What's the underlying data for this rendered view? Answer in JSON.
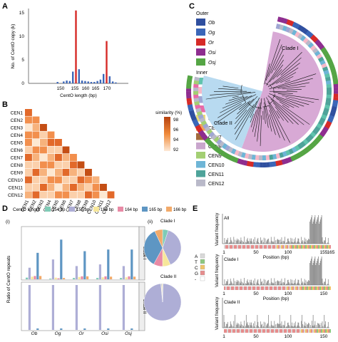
{
  "panels": {
    "A": {
      "label": "A",
      "ylabel": "No. of CentO copy (k)",
      "xlabel": "CentO length (bp)",
      "xticks": [
        "150",
        "155",
        "160",
        "165",
        "170"
      ],
      "yticks": [
        "0",
        "5",
        "10",
        "15"
      ]
    },
    "B": {
      "label": "B",
      "legend_title": "similarity (%)",
      "legend_ticks": [
        "98",
        "96",
        "94",
        "92"
      ],
      "rows": [
        "CEN1",
        "CEN2",
        "CEN3",
        "CEN4",
        "CEN5",
        "CEN6",
        "CEN7",
        "CEN8",
        "CEN9",
        "CEN10",
        "CEN11",
        "CEN12"
      ]
    },
    "C": {
      "label": "C",
      "outer_title": "Outer",
      "outer": [
        {
          "name": "Ob",
          "color": "#2f4f9f"
        },
        {
          "name": "Og",
          "color": "#3b66b8"
        },
        {
          "name": "Or",
          "color": "#d62a27"
        },
        {
          "name": "Osi",
          "color": "#8e2d8f"
        },
        {
          "name": "Osj",
          "color": "#55a544"
        }
      ],
      "inner_title": "Inner",
      "inner": [
        {
          "name": "CEN1",
          "color": "#5fc3ad"
        },
        {
          "name": "CEN2",
          "color": "#f6b8c8"
        },
        {
          "name": "CEN3",
          "color": "#9fa6d3"
        },
        {
          "name": "CEN4",
          "color": "#e86aa8"
        },
        {
          "name": "CEN5",
          "color": "#e9db79"
        },
        {
          "name": "CEN6",
          "color": "#f3a35a"
        },
        {
          "name": "CEN7",
          "color": "#a36a3b"
        },
        {
          "name": "CEN8",
          "color": "#c9a6cd"
        },
        {
          "name": "CEN9",
          "color": "#a3cf73"
        },
        {
          "name": "CEN10",
          "color": "#6eb5d6"
        },
        {
          "name": "CEN11",
          "color": "#4ea39a"
        },
        {
          "name": "CEN12",
          "color": "#b9b9c9"
        }
      ],
      "clade1": "Clade I",
      "clade2": "Clade II"
    },
    "D": {
      "label": "D",
      "legend_title": "CentO length",
      "legend": [
        {
          "name": "154 bp",
          "color": "#7fcbb6"
        },
        {
          "name": "155 bp",
          "color": "#aeaed6"
        },
        {
          "name": "156 bp",
          "color": "#f7e79a"
        },
        {
          "name": "164 bp",
          "color": "#e88aa5"
        },
        {
          "name": "165 bp",
          "color": "#5e96c3"
        },
        {
          "name": "166 bp",
          "color": "#f2aa6a"
        }
      ],
      "sub_i": "(i)",
      "sub_ii": "(ii)",
      "ylabel": "Ratio of CentO repeats",
      "species": [
        "Ob",
        "Og",
        "Or",
        "Osi",
        "Osj"
      ],
      "clade1": "Clade I",
      "clade2": "Clade II",
      "pie1": "Clade I",
      "pie2": "Clade II"
    },
    "E": {
      "label": "E",
      "ylabel": "Variant frequency",
      "xlabel": "Position (bp)",
      "xticks": [
        "1",
        "50",
        "100",
        "155",
        "165"
      ],
      "xticks_short": [
        "1",
        "50",
        "100",
        "150"
      ],
      "tracks": [
        "All",
        "Clade I",
        "Clade II"
      ],
      "nucleotides": [
        "A",
        "T",
        "C",
        "G",
        "-"
      ]
    }
  },
  "chart_data": [
    {
      "type": "bar",
      "title": "",
      "xlabel": "CentO length (bp)",
      "ylabel": "No. of CentO copy (k)",
      "ylim": [
        0,
        16
      ],
      "series": [
        {
          "name": "",
          "x": [
            149,
            151,
            152,
            153,
            154,
            155,
            156,
            157,
            158,
            159,
            160,
            161,
            162,
            163,
            164,
            165,
            166,
            167,
            168
          ],
          "values": [
            0.3,
            0.4,
            0.6,
            0.5,
            2.5,
            15.5,
            3.0,
            0.6,
            0.5,
            0.4,
            0.3,
            0.3,
            0.5,
            0.8,
            2.0,
            9.0,
            1.5,
            0.4,
            0.2
          ]
        }
      ]
    },
    {
      "type": "bar",
      "title": "",
      "ylabel": "Ratio of CentO repeats",
      "categories": [
        "Ob",
        "Og",
        "Or",
        "Osi",
        "Osj"
      ],
      "series": [
        {
          "name": "154 bp",
          "values": [
            0.05,
            0.02,
            0.04,
            0.04,
            0.04
          ]
        },
        {
          "name": "155 bp",
          "values": [
            0.35,
            0.6,
            0.4,
            0.45,
            0.4
          ]
        },
        {
          "name": "156 bp",
          "values": [
            0.08,
            0.05,
            0.07,
            0.06,
            0.06
          ]
        },
        {
          "name": "164 bp",
          "values": [
            0.1,
            0.03,
            0.09,
            0.09,
            0.09
          ]
        },
        {
          "name": "165 bp",
          "values": [
            0.8,
            1.2,
            0.85,
            0.9,
            0.9
          ]
        },
        {
          "name": "166 bp",
          "values": [
            0.1,
            0.04,
            0.09,
            0.08,
            0.08
          ]
        }
      ]
    },
    {
      "type": "pie",
      "title": "Clade I",
      "categories": [
        "154 bp",
        "155 bp",
        "156 bp",
        "164 bp",
        "165 bp",
        "166 bp"
      ],
      "values": [
        0.05,
        0.38,
        0.07,
        0.08,
        0.35,
        0.07
      ]
    },
    {
      "type": "pie",
      "title": "Clade II",
      "categories": [
        "154 bp",
        "155 bp",
        "156 bp",
        "164 bp",
        "165 bp",
        "166 bp"
      ],
      "values": [
        0.005,
        0.98,
        0.005,
        0.0,
        0.005,
        0.005
      ]
    }
  ]
}
